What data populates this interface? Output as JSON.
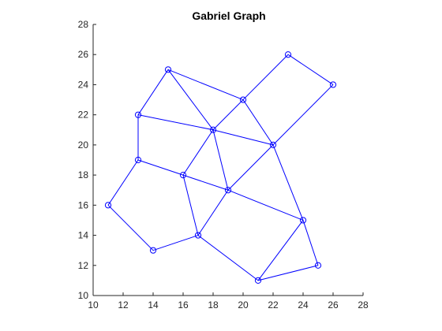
{
  "chart_data": {
    "type": "scatter",
    "title": "Gabriel Graph",
    "xlabel": "",
    "ylabel": "",
    "xlim": [
      10,
      28
    ],
    "ylim": [
      10,
      28
    ],
    "xticks": [
      10,
      12,
      14,
      16,
      18,
      20,
      22,
      24,
      26,
      28
    ],
    "yticks": [
      10,
      12,
      14,
      16,
      18,
      20,
      22,
      24,
      26,
      28
    ],
    "grid": false,
    "marker": "circle",
    "color": "#0000ff",
    "axis_color": "#262626",
    "nodes": [
      {
        "x": 11,
        "y": 16
      },
      {
        "x": 13,
        "y": 19
      },
      {
        "x": 13,
        "y": 22
      },
      {
        "x": 14,
        "y": 13
      },
      {
        "x": 15,
        "y": 25
      },
      {
        "x": 16,
        "y": 18
      },
      {
        "x": 17,
        "y": 14
      },
      {
        "x": 18,
        "y": 21
      },
      {
        "x": 19,
        "y": 17
      },
      {
        "x": 20,
        "y": 23
      },
      {
        "x": 21,
        "y": 11
      },
      {
        "x": 22,
        "y": 20
      },
      {
        "x": 23,
        "y": 26
      },
      {
        "x": 24,
        "y": 15
      },
      {
        "x": 25,
        "y": 12
      },
      {
        "x": 26,
        "y": 24
      }
    ],
    "edges": [
      [
        [
          11,
          16
        ],
        [
          13,
          19
        ]
      ],
      [
        [
          11,
          16
        ],
        [
          14,
          13
        ]
      ],
      [
        [
          14,
          13
        ],
        [
          17,
          14
        ]
      ],
      [
        [
          13,
          19
        ],
        [
          13,
          22
        ]
      ],
      [
        [
          13,
          19
        ],
        [
          16,
          18
        ]
      ],
      [
        [
          13,
          22
        ],
        [
          15,
          25
        ]
      ],
      [
        [
          13,
          22
        ],
        [
          18,
          21
        ]
      ],
      [
        [
          15,
          25
        ],
        [
          18,
          21
        ]
      ],
      [
        [
          15,
          25
        ],
        [
          20,
          23
        ]
      ],
      [
        [
          20,
          23
        ],
        [
          18,
          21
        ]
      ],
      [
        [
          20,
          23
        ],
        [
          22,
          20
        ]
      ],
      [
        [
          20,
          23
        ],
        [
          23,
          26
        ]
      ],
      [
        [
          23,
          26
        ],
        [
          26,
          24
        ]
      ],
      [
        [
          26,
          24
        ],
        [
          22,
          20
        ]
      ],
      [
        [
          18,
          21
        ],
        [
          22,
          20
        ]
      ],
      [
        [
          18,
          21
        ],
        [
          16,
          18
        ]
      ],
      [
        [
          18,
          21
        ],
        [
          19,
          17
        ]
      ],
      [
        [
          22,
          20
        ],
        [
          19,
          17
        ]
      ],
      [
        [
          22,
          20
        ],
        [
          24,
          15
        ]
      ],
      [
        [
          16,
          18
        ],
        [
          19,
          17
        ]
      ],
      [
        [
          16,
          18
        ],
        [
          17,
          14
        ]
      ],
      [
        [
          19,
          17
        ],
        [
          17,
          14
        ]
      ],
      [
        [
          19,
          17
        ],
        [
          24,
          15
        ]
      ],
      [
        [
          17,
          14
        ],
        [
          21,
          11
        ]
      ],
      [
        [
          21,
          11
        ],
        [
          24,
          15
        ]
      ],
      [
        [
          21,
          11
        ],
        [
          25,
          12
        ]
      ],
      [
        [
          24,
          15
        ],
        [
          25,
          12
        ]
      ]
    ]
  }
}
